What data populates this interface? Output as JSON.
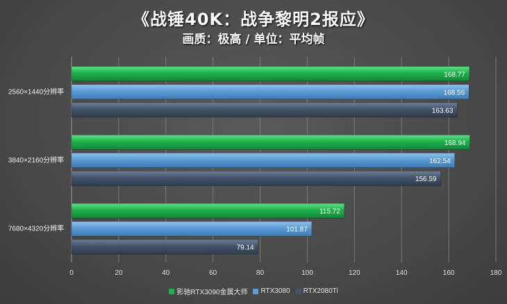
{
  "chart_data": {
    "type": "bar",
    "orientation": "horizontal",
    "title": "《战锤40K：战争黎明2报应》",
    "subtitle": "画质：极高 / 单位：平均帧",
    "categories": [
      "2560×1440分辨率",
      "3840×2160分辨率",
      "7680×4320分辨率"
    ],
    "series": [
      {
        "name": "影驰RTX3090金属大师",
        "color": "#1fb24a",
        "values": [
          168.77,
          168.94,
          115.72
        ]
      },
      {
        "name": "RTX3080",
        "color": "#5b9bd5",
        "values": [
          168.56,
          162.54,
          101.87
        ]
      },
      {
        "name": "RTX2080Ti",
        "color": "#44546a",
        "values": [
          163.63,
          156.59,
          79.14
        ]
      }
    ],
    "value_labels": [
      [
        "168.77",
        "168.56",
        "163.63"
      ],
      [
        "168.94",
        "162.54",
        "156.59"
      ],
      [
        "115.72",
        "101.87",
        "79.14"
      ]
    ],
    "xlim": [
      0,
      180
    ],
    "xticks": [
      "0",
      "20",
      "40",
      "60",
      "80",
      "100",
      "120",
      "140",
      "160",
      "180"
    ],
    "grid": true,
    "legend_position": "bottom"
  }
}
